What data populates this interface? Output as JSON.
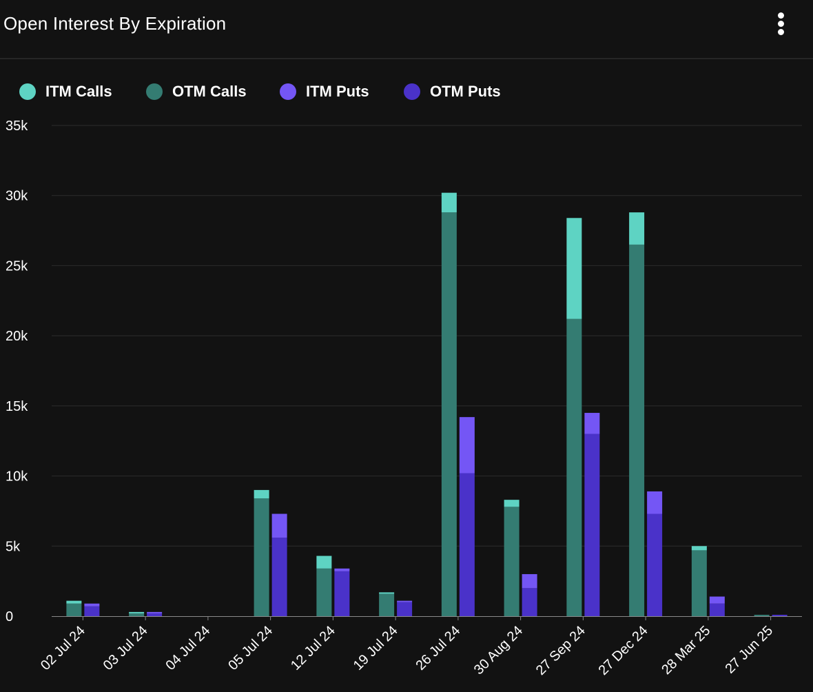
{
  "header": {
    "title": "Open Interest By Expiration",
    "menu_icon": "more-vertical-icon"
  },
  "colors": {
    "background": "#121212",
    "itm_calls": "#5ed3c3",
    "otm_calls": "#347c72",
    "itm_puts": "#7456f5",
    "otm_puts": "#4a32c9",
    "grid": "#2c2c2c",
    "axis_text": "#ffffff"
  },
  "chart_data": {
    "type": "bar",
    "stacking": "stacked-grouped",
    "title": "Open Interest By Expiration",
    "categories": [
      "02 Jul 24",
      "03 Jul 24",
      "04 Jul 24",
      "05 Jul 24",
      "12 Jul 24",
      "19 Jul 24",
      "26 Jul 24",
      "30 Aug 24",
      "27 Sep 24",
      "27 Dec 24",
      "28 Mar 25",
      "27 Jun 25"
    ],
    "series": [
      {
        "name": "ITM Calls",
        "stack": "calls",
        "values": [
          200,
          100,
          0,
          600,
          900,
          100,
          1400,
          500,
          7200,
          2300,
          300,
          0
        ]
      },
      {
        "name": "OTM Calls",
        "stack": "calls",
        "values": [
          900,
          200,
          0,
          8400,
          3400,
          1600,
          28800,
          7800,
          21200,
          26500,
          4700,
          100
        ]
      },
      {
        "name": "ITM Puts",
        "stack": "puts",
        "values": [
          200,
          100,
          0,
          1700,
          200,
          100,
          4000,
          1000,
          1500,
          1600,
          500,
          0
        ]
      },
      {
        "name": "OTM Puts",
        "stack": "puts",
        "values": [
          700,
          200,
          0,
          5600,
          3200,
          1000,
          10200,
          2000,
          13000,
          7300,
          900,
          100
        ]
      }
    ],
    "yticks": [
      "0",
      "5k",
      "10k",
      "15k",
      "20k",
      "25k",
      "30k",
      "35k"
    ],
    "ylim": [
      0,
      35000
    ],
    "legend": "top-left",
    "grid": true
  }
}
